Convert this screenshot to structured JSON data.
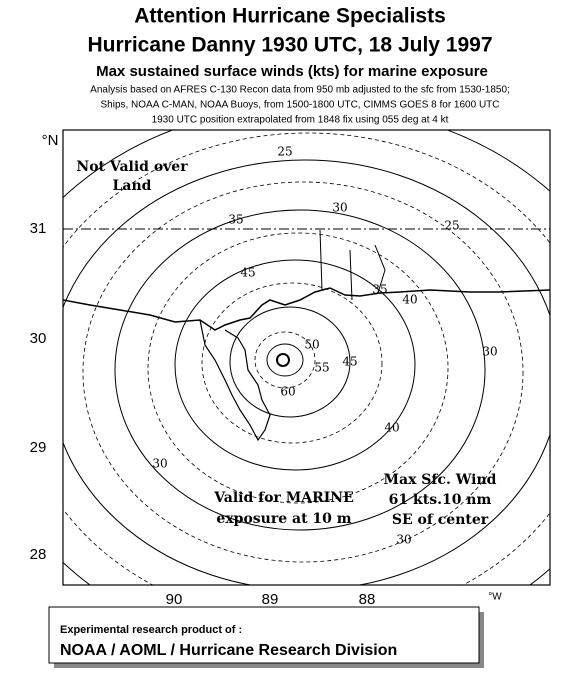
{
  "header": {
    "title": "Attention Hurricane Specialists",
    "subtitle": "Hurricane Danny  1930 UTC, 18 July 1997",
    "heading": "Max sustained surface winds (kts) for marine exposure",
    "notes": [
      "Analysis based on  AFRES C-130 Recon data from   950  mb adjusted to the sfc from  1530-1850;",
      "Ships, NOAA C-MAN, NOAA Buoys, from  1500-1800  UTC, CIMMS GOES 8 for 1600 UTC",
      "1930 UTC position extrapolated from  1848 fix using 055 deg at 4 kt"
    ]
  },
  "map": {
    "lat_unit": "°N",
    "lat_labels": [
      "31",
      "30",
      "29",
      "28"
    ],
    "lon_labels": [
      "90",
      "89",
      "88"
    ],
    "lon_unit": "°W",
    "land_note": [
      "Not Valid over",
      "Land"
    ],
    "marine_note": [
      "Valid for MARINE",
      "exposure at 10 m"
    ],
    "max_wind_note": [
      "Max Sfc. Wind",
      "61 kts.10 nm",
      "SE of center"
    ],
    "contour_labels": [
      "25",
      "30",
      "25",
      "35",
      "35",
      "45",
      "40",
      "45",
      "50",
      "55",
      "60",
      "40",
      "30",
      "30",
      "30"
    ]
  },
  "footer": {
    "line1": "Experimental research product of :",
    "line2": "NOAA / AOML / Hurricane Research Division"
  }
}
